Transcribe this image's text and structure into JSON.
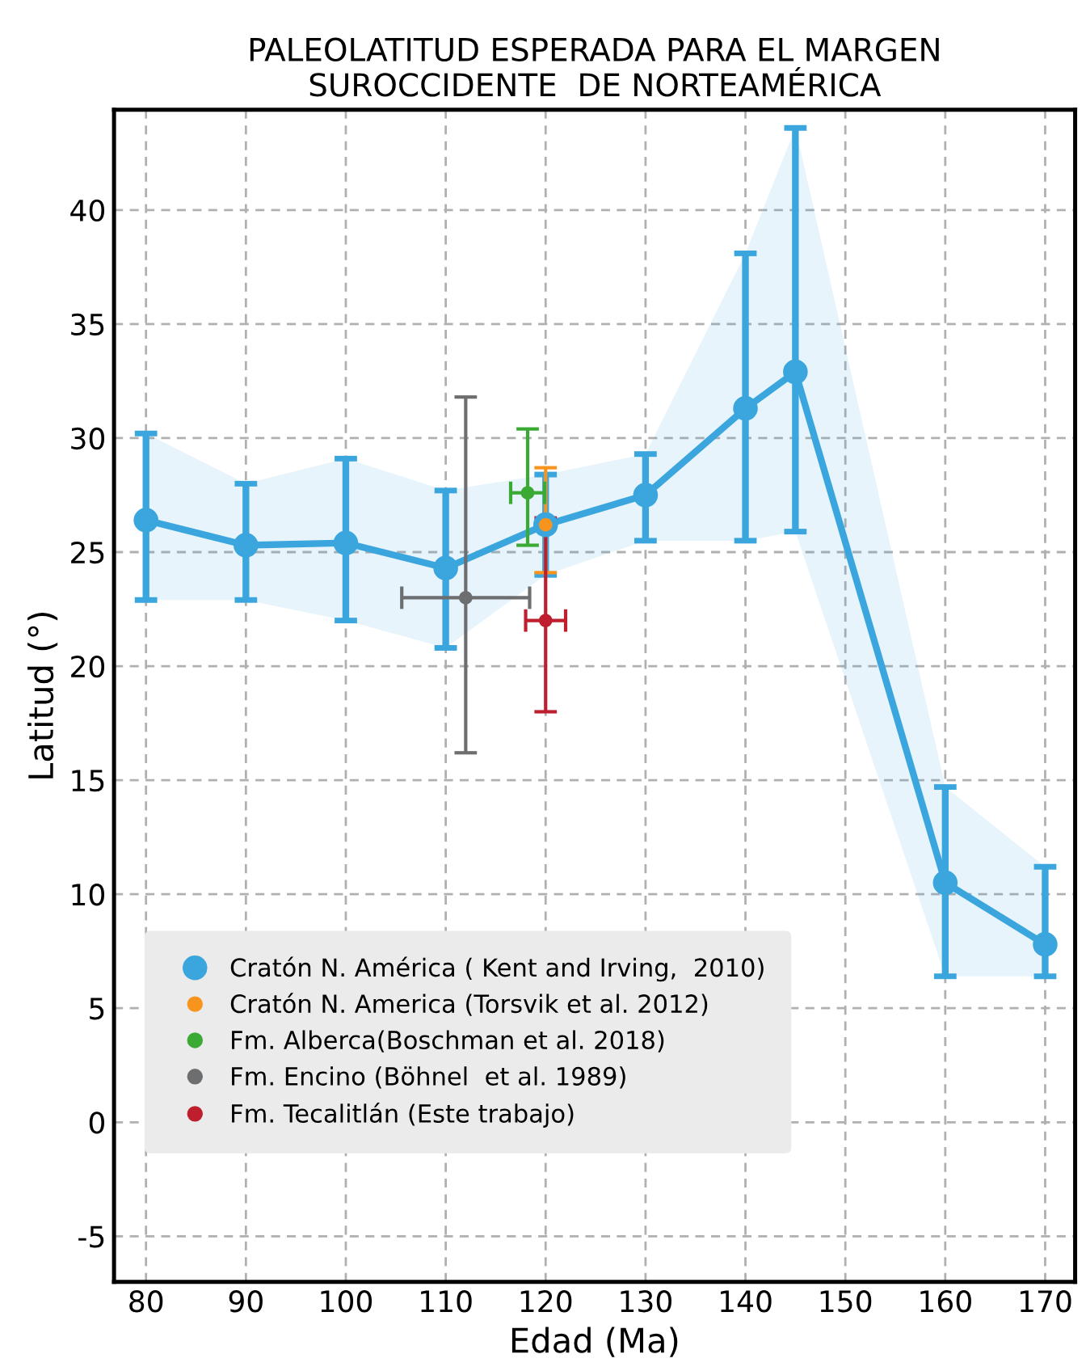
{
  "chart_data": {
    "type": "line",
    "title": "PALEOLATITUD ESPERADA PARA EL MARGEN\nSUROCCIDENTE  DE NORTEAMÉRICA",
    "xlabel": "Edad (Ma)",
    "ylabel": "Latitud (°)",
    "xlim": [
      76.8,
      173
    ],
    "ylim": [
      -7,
      44.4
    ],
    "xticks": [
      80,
      90,
      100,
      110,
      120,
      130,
      140,
      150,
      160,
      170
    ],
    "yticks": [
      -5,
      0,
      5,
      10,
      15,
      20,
      25,
      30,
      35,
      40
    ],
    "grid": true,
    "legend": "bottom left",
    "marker": "circle",
    "line_style": "solid",
    "series": [
      {
        "name": "Cratón N. América ( Kent and Irving,  2010)",
        "color": "#3aa6dd",
        "x": [
          80,
          90,
          100,
          110,
          120,
          130,
          140,
          145,
          160,
          170
        ],
        "values": [
          26.4,
          25.3,
          25.4,
          24.3,
          26.2,
          27.5,
          31.3,
          32.9,
          10.5,
          7.8
        ],
        "errors": [
          [
            22.9,
            30.2
          ],
          [
            22.9,
            28.0
          ],
          [
            22.0,
            29.1
          ],
          [
            20.8,
            27.7
          ],
          [
            24.0,
            28.4
          ],
          [
            25.5,
            29.3
          ],
          [
            25.5,
            38.1
          ],
          [
            25.9,
            43.6
          ],
          [
            6.4,
            14.7
          ],
          [
            6.4,
            11.2
          ]
        ],
        "lower": [
          22.9,
          22.9,
          22.0,
          20.8,
          24.0,
          25.5,
          25.5,
          25.9,
          6.4,
          6.4
        ],
        "upper": [
          30.2,
          28.0,
          29.1,
          27.7,
          28.4,
          29.3,
          38.1,
          43.6,
          14.7,
          11.2
        ]
      },
      {
        "name": "Cratón N. America (Torsvik et al. 2012)",
        "type": "scatter",
        "color": "#f7941d",
        "x": [
          120
        ],
        "values": [
          26.2
        ],
        "errors": [
          [
            24.1,
            28.7
          ]
        ]
      },
      {
        "name": "Fm. Alberca(Boschman et al. 2018)",
        "type": "scatter",
        "color": "#3aaa35",
        "x": [
          118.2
        ],
        "values": [
          27.6
        ],
        "errors": [
          [
            25.3,
            30.4
          ]
        ],
        "xerrors": [
          1.7
        ]
      },
      {
        "name": "Fm. Encino (Böhnel  et al. 1989)",
        "type": "scatter",
        "color": "#6d6e70",
        "x": [
          112
        ],
        "values": [
          23.0
        ],
        "errors": [
          [
            16.2,
            31.8
          ]
        ],
        "xerrors": [
          6.4
        ]
      },
      {
        "name": "Fm. Tecalitlán (Este trabajo)",
        "type": "scatter",
        "color": "#be1e2d",
        "x": [
          120
        ],
        "values": [
          22.0
        ],
        "errors": [
          [
            18.0,
            26.5
          ]
        ],
        "xerrors": [
          2.0
        ]
      }
    ]
  }
}
